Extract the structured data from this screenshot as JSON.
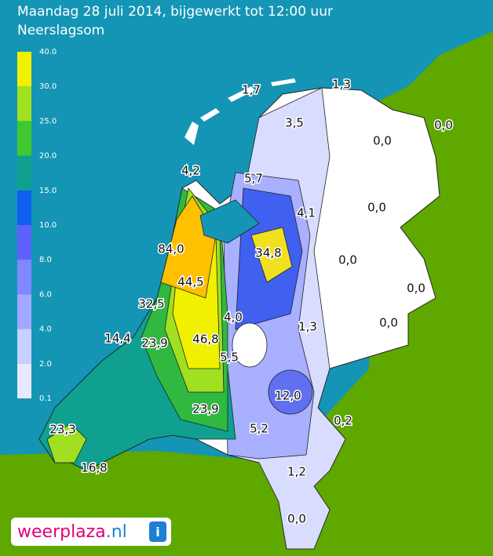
{
  "header": {
    "title": "Maandag 28 juli 2014, bijgewerkt tot 12:00 uur",
    "subtitle": "Neerslagsom"
  },
  "legend": {
    "labels": [
      "40.0",
      "30.0",
      "25.0",
      "20.0",
      "15.0",
      "10.0",
      "8.0",
      "6.0",
      "4.0",
      "2.0",
      "0.1"
    ]
  },
  "map": {
    "labels": [
      "1,7",
      "1,3",
      "3,5",
      "0,0",
      "0,0",
      "4,2",
      "5,7",
      "4,1",
      "0,0",
      "84,0",
      "34,8",
      "0,0",
      "44,5",
      "0,0",
      "32,5",
      "4,0",
      "1,3",
      "0,0",
      "14,4",
      "23,9",
      "46,8",
      "5,5",
      "12,0",
      "23,9",
      "0,2",
      "5,2",
      "23,3",
      "16,8",
      "1,2",
      "0,0"
    ]
  },
  "logo": {
    "name": "weerplaza",
    "tld": ".nl"
  }
}
